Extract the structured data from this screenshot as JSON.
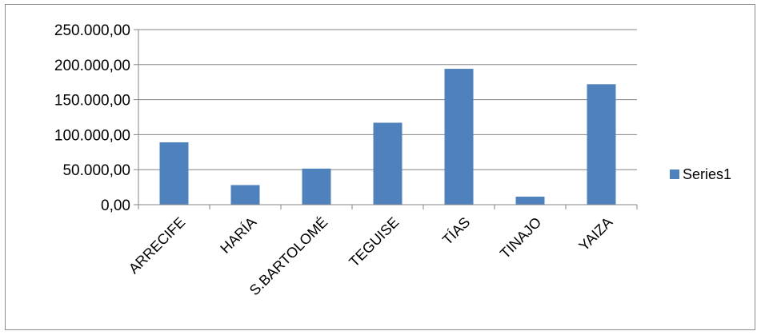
{
  "chart_data": {
    "type": "bar",
    "categories": [
      "ARRECIFE",
      "HARÍA",
      "S.BARTOLOMÉ",
      "TEGUISE",
      "TÍAS",
      "TINAJO",
      "YAIZA"
    ],
    "series": [
      {
        "name": "Series1",
        "values": [
          89000,
          28000,
          51500,
          117000,
          194000,
          11500,
          172000
        ]
      }
    ],
    "title": "",
    "xlabel": "",
    "ylabel": "",
    "ylim": [
      0,
      250000
    ],
    "y_ticks": [
      0,
      50000,
      100000,
      150000,
      200000,
      250000
    ],
    "y_tick_labels": [
      "0,00",
      "50.000,00",
      "100.000,00",
      "150.000,00",
      "200.000,00",
      "250.000,00"
    ],
    "grid": true,
    "legend_position": "right",
    "colors": {
      "bar": "#4f81bd",
      "grid": "#868686",
      "axis": "#868686"
    }
  }
}
